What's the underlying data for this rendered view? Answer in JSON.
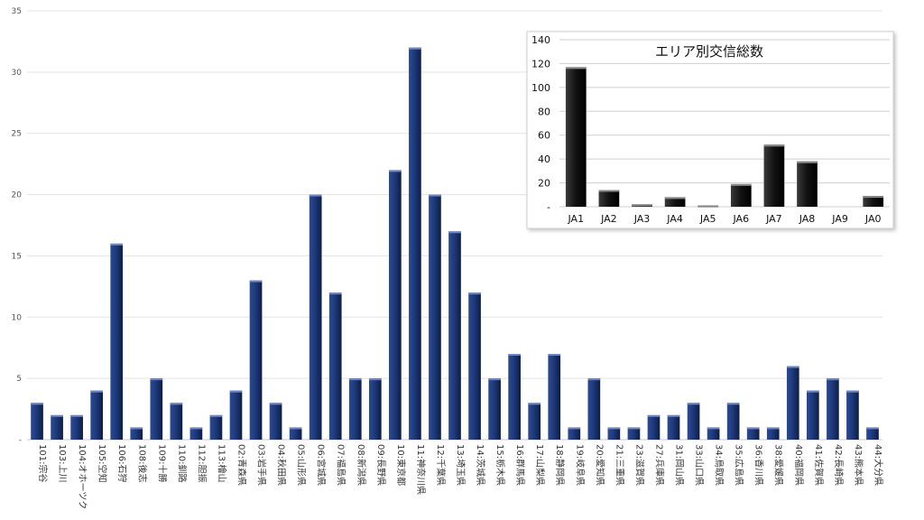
{
  "chart_data": [
    {
      "type": "bar",
      "title": "",
      "xlabel": "",
      "ylabel": "",
      "ylim": [
        0,
        35
      ],
      "yticks": [
        "-",
        "5",
        "10",
        "15",
        "20",
        "25",
        "30",
        "35"
      ],
      "grid": true,
      "bar_color": "#1F3A7A",
      "categories": [
        "101:宗谷",
        "103:上川",
        "104:オホーツク",
        "105:空知",
        "106:石狩",
        "108:後志",
        "109:十勝",
        "110:釧路",
        "112:胆振",
        "113:檜山",
        "02:青森県",
        "03:岩手県",
        "04:秋田県",
        "05:山形県",
        "06:宮城県",
        "07:福島県",
        "08:新潟県",
        "09:長野県",
        "10:東京都",
        "11:神奈川県",
        "12:千葉県",
        "13:埼玉県",
        "14:茨城県",
        "15:栃木県",
        "16:群馬県",
        "17:山梨県",
        "18:静岡県",
        "19:岐阜県",
        "20:愛知県",
        "21:三重県",
        "23:滋賀県",
        "27:兵庫県",
        "31:岡山県",
        "33:山口県",
        "34:鳥取県",
        "35:広島県",
        "36:香川県",
        "38:愛媛県",
        "40:福岡県",
        "41:佐賀県",
        "42:長崎県",
        "43:熊本県",
        "44:大分県"
      ],
      "values": [
        3,
        2,
        2,
        4,
        16,
        1,
        5,
        3,
        1,
        2,
        4,
        13,
        3,
        1,
        20,
        12,
        5,
        5,
        22,
        32,
        20,
        17,
        12,
        5,
        7,
        3,
        7,
        1,
        5,
        1,
        1,
        2,
        2,
        3,
        1,
        3,
        1,
        1,
        6,
        4,
        5,
        4,
        1
      ]
    },
    {
      "type": "bar",
      "title": "エリア別交信総数",
      "xlabel": "",
      "ylabel": "",
      "ylim": [
        0,
        140
      ],
      "yticks": [
        "-",
        "20",
        "40",
        "60",
        "80",
        "100",
        "120",
        "140"
      ],
      "legend": "none",
      "bar_color": "#111111",
      "categories": [
        "JA1",
        "JA2",
        "JA3",
        "JA4",
        "JA5",
        "JA6",
        "JA7",
        "JA8",
        "JA9",
        "JA0"
      ],
      "values": [
        117,
        14,
        2,
        8,
        1,
        19,
        52,
        38,
        0,
        9
      ]
    }
  ]
}
